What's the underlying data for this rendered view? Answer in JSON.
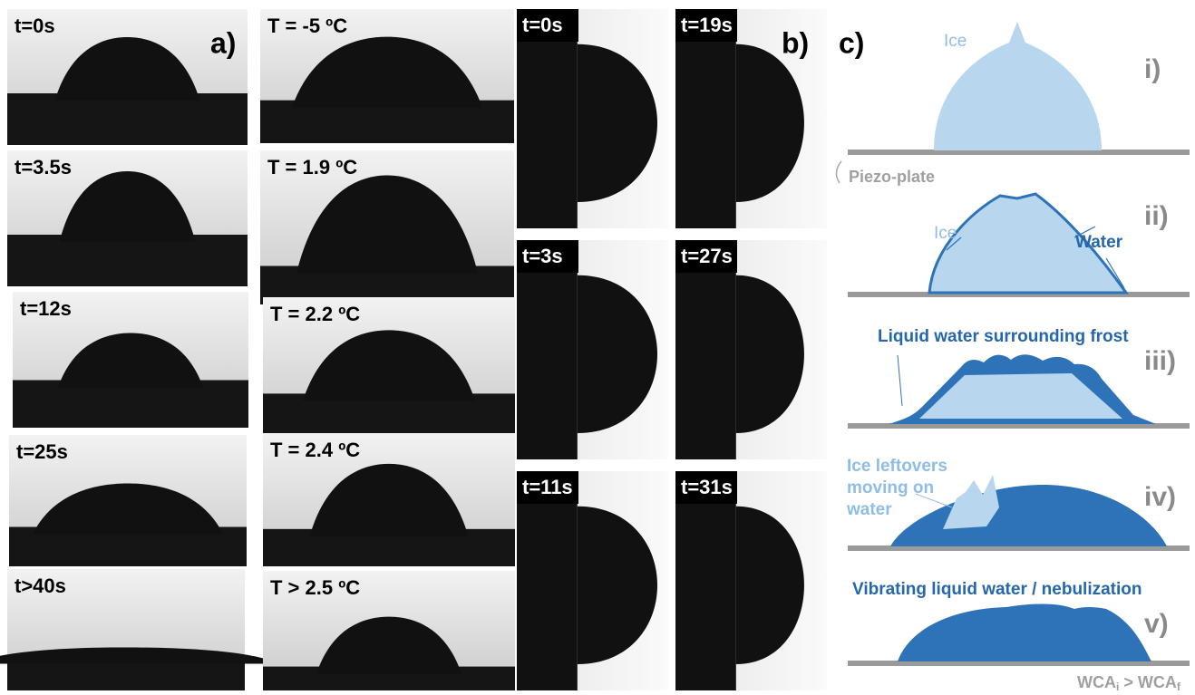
{
  "panel_a": {
    "label": "a)",
    "time_frames": [
      "t=0s",
      "t=3.5s",
      "t=12s",
      "t=25s",
      "t>40s"
    ],
    "temperature_frames": [
      "T = -5 ºC",
      "T = 1.9 ºC",
      "T = 2.2 ºC",
      "T = 2.4 ºC",
      "T > 2.5 ºC"
    ]
  },
  "panel_b": {
    "label": "b)",
    "frames": [
      "t=0s",
      "t=19s",
      "t=3s",
      "t=27s",
      "t=11s",
      "t=31s"
    ]
  },
  "panel_c": {
    "label": "c)",
    "stages": [
      {
        "numeral": "i)",
        "ice_label": "Ice"
      },
      {
        "numeral": "ii)",
        "ice_label": "Ice",
        "water_label": "Water"
      },
      {
        "numeral": "iii)",
        "caption": "Liquid water surrounding frost"
      },
      {
        "numeral": "iv)",
        "caption_lines": [
          "Ice leftovers",
          "moving on",
          "water"
        ]
      },
      {
        "numeral": "v)",
        "caption": "Vibrating liquid water / nebulization"
      }
    ],
    "plate_label": "Piezo-plate",
    "footer": {
      "left": "WCA",
      "left_sub": "i",
      "relation": " > ",
      "right": "WCA",
      "right_sub": "f"
    }
  }
}
